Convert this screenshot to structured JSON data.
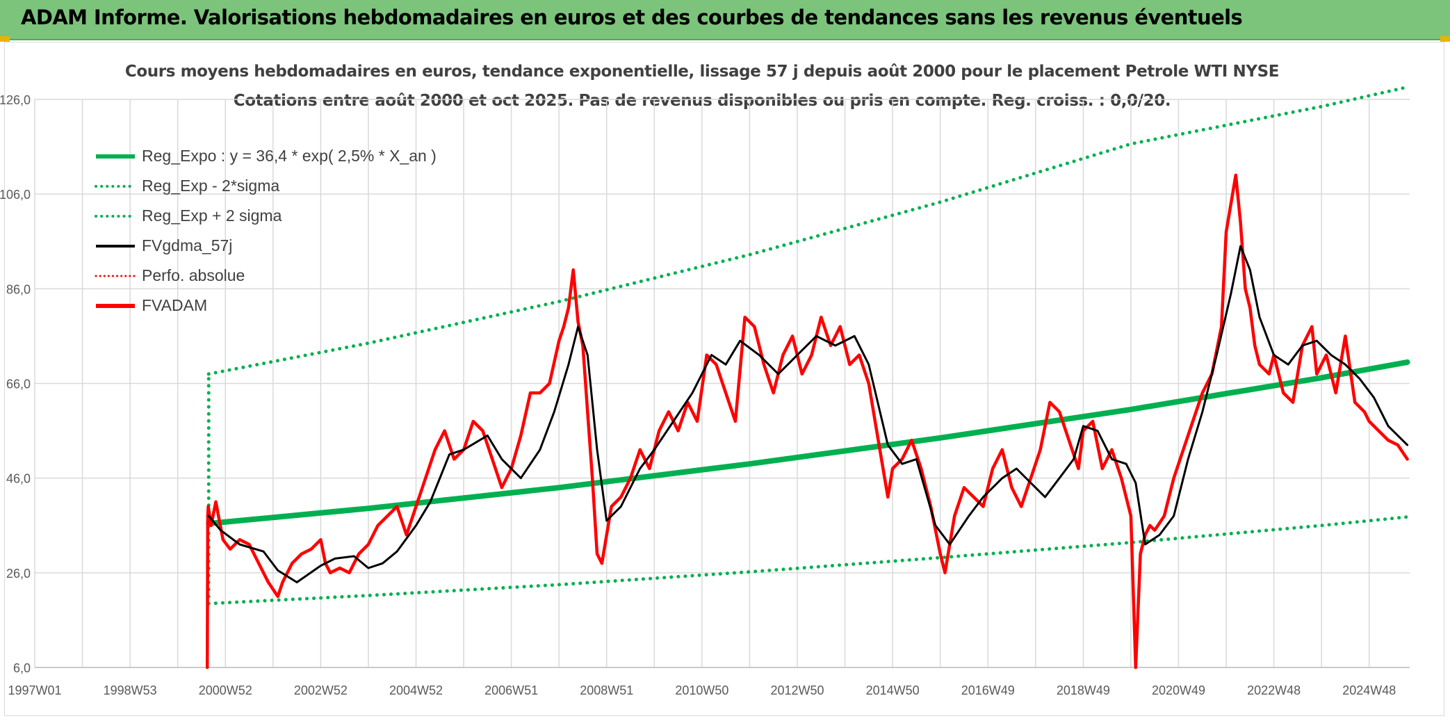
{
  "header": {
    "title": "ADAM Informe. Valorisations hebdomadaires en euros et des courbes de tendances sans les revenus éventuels",
    "background": "#7cc47c"
  },
  "chart_data": {
    "type": "line",
    "title": "Cours moyens hebdomadaires en euros, tendance exponentielle, lissage 57 j depuis août 2000 pour le placement Petrole WTI NYSE",
    "subtitle": "Cotations entre août 2000 et oct 2025. Pas de revenus disponibles ou pris en compte. Reg. croiss. : 0,0/20.",
    "xlabel": "",
    "ylabel": "",
    "x_ticks": [
      "1997W01",
      "1998W53",
      "2000W52",
      "2002W52",
      "2004W52",
      "2006W51",
      "2008W51",
      "2010W50",
      "2012W50",
      "2014W50",
      "2016W49",
      "2018W49",
      "2020W49",
      "2022W48",
      "2024W48"
    ],
    "y_ticks": [
      "6,0",
      "26,0",
      "46,0",
      "66,0",
      "86,0",
      "106,0",
      "126,0"
    ],
    "xlim": [
      1997.0,
      2025.85
    ],
    "ylim": [
      6,
      126
    ],
    "grid": true,
    "legend_position": "top-left",
    "legend": [
      {
        "label": "Reg_Expo : y = 36,4 * exp( 2,5% *  X_an )",
        "color": "#00b050",
        "style": "solid-thick"
      },
      {
        "label": "Reg_Exp - 2*sigma",
        "color": "#00b050",
        "style": "dotted"
      },
      {
        "label": "Reg_Exp + 2 sigma",
        "color": "#00b050",
        "style": "dotted"
      },
      {
        "label": "FVgdma_57j",
        "color": "#000000",
        "style": "solid"
      },
      {
        "label": "Perfo. absolue",
        "color": "#ff0000",
        "style": "dotted"
      },
      {
        "label": "FVADAM",
        "color": "#ff0000",
        "style": "solid-thick"
      }
    ],
    "series": [
      {
        "name": "Reg_Expo : y = 36,4 * exp( 2,5% *  X_an )",
        "x": [
          2000.65,
          2004.0,
          2008.0,
          2012.0,
          2016.0,
          2020.0,
          2024.0,
          2025.8
        ],
        "y": [
          36.4,
          39.6,
          44.0,
          49.0,
          54.5,
          60.5,
          67.2,
          70.5
        ]
      },
      {
        "name": "Reg_Exp - 2*sigma",
        "x": [
          2000.65,
          2004.0,
          2008.0,
          2012.0,
          2016.0,
          2020.0,
          2024.0,
          2025.8
        ],
        "y": [
          19.5,
          21.2,
          23.5,
          26.2,
          29.2,
          32.4,
          36.0,
          37.8
        ]
      },
      {
        "name": "Reg_Exp + 2 sigma",
        "x": [
          2000.65,
          2004.0,
          2008.0,
          2012.0,
          2016.0,
          2020.0,
          2024.0,
          2025.8
        ],
        "y": [
          68.0,
          74.5,
          83.3,
          93.2,
          104.3,
          116.6,
          124.5,
          128.6
        ]
      },
      {
        "name": "FVgdma_57j",
        "x": [
          2000.65,
          2000.9,
          2001.3,
          2001.8,
          2002.1,
          2002.5,
          2003.0,
          2003.3,
          2003.7,
          2004.0,
          2004.3,
          2004.6,
          2005.0,
          2005.3,
          2005.7,
          2006.0,
          2006.5,
          2006.8,
          2007.2,
          2007.6,
          2007.9,
          2008.2,
          2008.4,
          2008.6,
          2008.8,
          2009.0,
          2009.3,
          2009.7,
          2010.0,
          2010.4,
          2010.8,
          2011.2,
          2011.5,
          2011.8,
          2012.2,
          2012.6,
          2013.0,
          2013.4,
          2013.8,
          2014.2,
          2014.5,
          2014.9,
          2015.2,
          2015.5,
          2015.9,
          2016.2,
          2016.6,
          2016.9,
          2017.3,
          2017.6,
          2017.9,
          2018.2,
          2018.5,
          2018.8,
          2019.0,
          2019.3,
          2019.6,
          2019.9,
          2020.1,
          2020.3,
          2020.6,
          2020.9,
          2021.2,
          2021.5,
          2021.8,
          2022.1,
          2022.3,
          2022.5,
          2022.7,
          2023.0,
          2023.3,
          2023.6,
          2023.9,
          2024.2,
          2024.5,
          2024.8,
          2025.1,
          2025.4,
          2025.8
        ],
        "y": [
          38.0,
          35.0,
          32.0,
          30.5,
          26.5,
          24.0,
          27.5,
          29.0,
          29.5,
          27.0,
          28.0,
          30.5,
          36.0,
          41.0,
          51.0,
          52.0,
          55.0,
          50.0,
          46.0,
          52.0,
          60.0,
          70.0,
          78.0,
          72.0,
          52.0,
          37.0,
          40.0,
          48.0,
          52.0,
          58.0,
          64.0,
          72.0,
          70.0,
          75.0,
          72.0,
          68.0,
          72.0,
          76.0,
          74.0,
          76.0,
          70.0,
          53.0,
          49.0,
          50.0,
          36.0,
          32.0,
          38.0,
          42.0,
          46.0,
          48.0,
          45.0,
          42.0,
          46.0,
          50.0,
          57.0,
          56.0,
          50.0,
          49.0,
          45.0,
          32.0,
          34.0,
          38.0,
          50.0,
          60.0,
          72.0,
          85.0,
          95.0,
          90.0,
          80.0,
          72.0,
          70.0,
          74.0,
          75.0,
          72.0,
          70.0,
          67.0,
          63.0,
          57.0,
          53.0
        ]
      },
      {
        "name": "FVADAM",
        "x": [
          2000.62,
          2000.63,
          2000.64,
          2000.7,
          2000.8,
          2000.95,
          2001.1,
          2001.3,
          2001.5,
          2001.7,
          2001.9,
          2002.1,
          2002.2,
          2002.4,
          2002.6,
          2002.8,
          2003.0,
          2003.1,
          2003.2,
          2003.4,
          2003.6,
          2003.8,
          2004.0,
          2004.2,
          2004.4,
          2004.6,
          2004.8,
          2005.0,
          2005.2,
          2005.4,
          2005.6,
          2005.8,
          2006.0,
          2006.2,
          2006.4,
          2006.6,
          2006.8,
          2007.0,
          2007.2,
          2007.4,
          2007.6,
          2007.8,
          2008.0,
          2008.1,
          2008.2,
          2008.3,
          2008.4,
          2008.5,
          2008.6,
          2008.7,
          2008.8,
          2008.9,
          2009.0,
          2009.1,
          2009.3,
          2009.5,
          2009.7,
          2009.9,
          2010.1,
          2010.3,
          2010.5,
          2010.7,
          2010.9,
          2011.1,
          2011.3,
          2011.5,
          2011.7,
          2011.9,
          2012.1,
          2012.3,
          2012.5,
          2012.7,
          2012.9,
          2013.1,
          2013.3,
          2013.5,
          2013.7,
          2013.9,
          2014.1,
          2014.3,
          2014.5,
          2014.7,
          2014.9,
          2015.0,
          2015.2,
          2015.4,
          2015.6,
          2015.8,
          2016.0,
          2016.1,
          2016.3,
          2016.5,
          2016.7,
          2016.9,
          2017.1,
          2017.3,
          2017.5,
          2017.7,
          2017.9,
          2018.1,
          2018.3,
          2018.5,
          2018.7,
          2018.9,
          2019.0,
          2019.2,
          2019.4,
          2019.6,
          2019.8,
          2020.0,
          2020.1,
          2020.2,
          2020.3,
          2020.4,
          2020.5,
          2020.7,
          2020.9,
          2021.1,
          2021.3,
          2021.5,
          2021.7,
          2021.9,
          2022.0,
          2022.1,
          2022.2,
          2022.3,
          2022.4,
          2022.5,
          2022.6,
          2022.7,
          2022.9,
          2023.0,
          2023.2,
          2023.4,
          2023.6,
          2023.8,
          2023.9,
          2024.1,
          2024.3,
          2024.5,
          2024.7,
          2024.9,
          2025.0,
          2025.2,
          2025.4,
          2025.6,
          2025.8
        ],
        "y": [
          6.0,
          38.0,
          40.0,
          36.0,
          41.0,
          33.0,
          31.0,
          33.0,
          32.0,
          28.0,
          24.0,
          21.0,
          24.0,
          28.0,
          30.0,
          31.0,
          33.0,
          28.0,
          26.0,
          27.0,
          26.0,
          30.0,
          32.0,
          36.0,
          38.0,
          40.0,
          34.0,
          40.0,
          46.0,
          52.0,
          56.0,
          50.0,
          52.0,
          58.0,
          56.0,
          50.0,
          44.0,
          48.0,
          55.0,
          64.0,
          64.0,
          66.0,
          75.0,
          78.0,
          82.0,
          90.0,
          79.0,
          74.0,
          60.0,
          46.0,
          30.0,
          28.0,
          34.0,
          40.0,
          42.0,
          46.0,
          52.0,
          48.0,
          56.0,
          60.0,
          56.0,
          62.0,
          58.0,
          72.0,
          70.0,
          64.0,
          58.0,
          80.0,
          78.0,
          70.0,
          64.0,
          72.0,
          76.0,
          68.0,
          72.0,
          80.0,
          74.0,
          78.0,
          70.0,
          72.0,
          66.0,
          54.0,
          42.0,
          48.0,
          50.0,
          54.0,
          48.0,
          40.0,
          30.0,
          26.0,
          38.0,
          44.0,
          42.0,
          40.0,
          48.0,
          52.0,
          44.0,
          40.0,
          46.0,
          52.0,
          62.0,
          60.0,
          54.0,
          48.0,
          56.0,
          58.0,
          48.0,
          52.0,
          46.0,
          38.0,
          6.0,
          30.0,
          34.0,
          36.0,
          35.0,
          38.0,
          46.0,
          52.0,
          58.0,
          64.0,
          68.0,
          78.0,
          98.0,
          104.0,
          110.0,
          100.0,
          86.0,
          82.0,
          74.0,
          70.0,
          68.0,
          72.0,
          64.0,
          62.0,
          74.0,
          78.0,
          68.0,
          72.0,
          64.0,
          76.0,
          62.0,
          60.0,
          58.0,
          56.0,
          54.0,
          53.0,
          50.0
        ]
      }
    ]
  }
}
